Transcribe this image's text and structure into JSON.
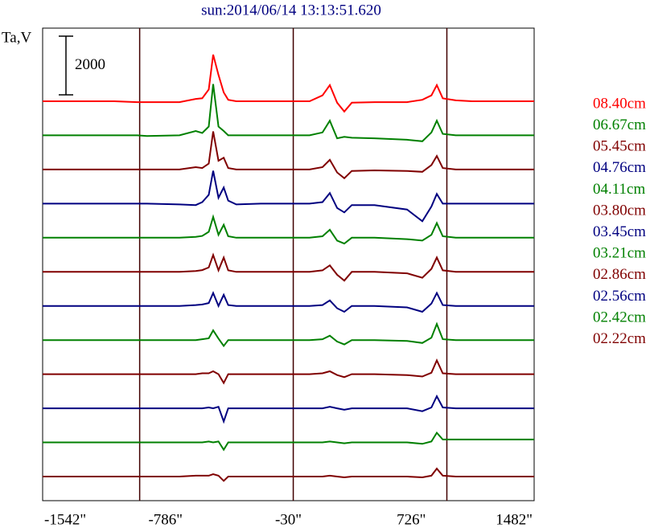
{
  "chart_data": {
    "type": "line",
    "title": "sun:2014/06/14 13:13:51.620",
    "ylabel": "Ta,V",
    "scale_bar": 2000,
    "xlim": [
      -1542,
      1482
    ],
    "xticks": [
      {
        "value": -1542,
        "label": "-1542\""
      },
      {
        "value": -786,
        "label": "-786\""
      },
      {
        "value": -30,
        "label": "-30\""
      },
      {
        "value": 726,
        "label": "726\""
      },
      {
        "value": 1482,
        "label": "1482\""
      }
    ],
    "markers": [
      -945,
      0,
      945
    ],
    "x": [
      -1542,
      -1100,
      -960,
      -900,
      -700,
      -600,
      -560,
      -520,
      -493,
      -460,
      -428,
      -400,
      -350,
      -200,
      100,
      180,
      225,
      270,
      314,
      360,
      500,
      700,
      794,
      850,
      883,
      920,
      1000,
      1100,
      1482
    ],
    "series": [
      {
        "name": "08.40cm",
        "color": "#ff0000",
        "values": [
          0,
          0,
          -30,
          -30,
          -30,
          80,
          100,
          400,
          1590,
          900,
          300,
          50,
          0,
          0,
          0,
          200,
          550,
          -50,
          -350,
          -50,
          -30,
          -30,
          50,
          200,
          550,
          100,
          30,
          0,
          0
        ]
      },
      {
        "name": "06.67cm",
        "color": "#008000",
        "values": [
          0,
          0,
          0,
          -20,
          0,
          150,
          80,
          300,
          1750,
          300,
          150,
          0,
          0,
          0,
          0,
          100,
          500,
          -100,
          -50,
          -80,
          -100,
          -150,
          -200,
          100,
          500,
          50,
          0,
          0,
          0
        ]
      },
      {
        "name": "05.45cm",
        "color": "#800000",
        "values": [
          0,
          0,
          0,
          0,
          0,
          80,
          50,
          200,
          1300,
          300,
          400,
          50,
          0,
          0,
          0,
          80,
          330,
          -100,
          -300,
          -50,
          -30,
          -50,
          -80,
          150,
          460,
          50,
          0,
          0,
          0
        ]
      },
      {
        "name": "04.76cm",
        "color": "#000080",
        "values": [
          0,
          0,
          0,
          0,
          -30,
          -50,
          50,
          300,
          1120,
          200,
          550,
          100,
          -30,
          0,
          0,
          50,
          360,
          -150,
          -300,
          -50,
          -50,
          -200,
          -600,
          -100,
          330,
          0,
          0,
          0,
          0
        ]
      },
      {
        "name": "04.11cm",
        "color": "#008000",
        "values": [
          0,
          0,
          0,
          0,
          0,
          30,
          60,
          200,
          710,
          100,
          440,
          50,
          0,
          0,
          0,
          50,
          270,
          -100,
          -200,
          0,
          0,
          -50,
          -100,
          100,
          500,
          50,
          0,
          0,
          0
        ]
      },
      {
        "name": "03.80cm",
        "color": "#800000",
        "values": [
          0,
          0,
          0,
          0,
          0,
          30,
          60,
          150,
          575,
          50,
          490,
          50,
          0,
          0,
          0,
          50,
          220,
          -100,
          -300,
          0,
          0,
          -50,
          -200,
          100,
          490,
          50,
          0,
          0,
          0
        ]
      },
      {
        "name": "03.45cm",
        "color": "#000080",
        "values": [
          0,
          0,
          0,
          0,
          0,
          30,
          50,
          100,
          440,
          0,
          380,
          30,
          0,
          0,
          0,
          30,
          190,
          -80,
          -200,
          0,
          0,
          -50,
          -200,
          80,
          440,
          30,
          0,
          0,
          0
        ]
      },
      {
        "name": "03.21cm",
        "color": "#008000",
        "values": [
          0,
          0,
          0,
          0,
          0,
          0,
          30,
          60,
          330,
          50,
          -200,
          0,
          0,
          0,
          0,
          30,
          150,
          -50,
          -150,
          0,
          0,
          -30,
          -100,
          80,
          550,
          30,
          0,
          0,
          0
        ]
      },
      {
        "name": "02.86cm",
        "color": "#800000",
        "values": [
          0,
          0,
          0,
          0,
          0,
          0,
          30,
          30,
          100,
          0,
          -300,
          0,
          0,
          0,
          0,
          30,
          100,
          -30,
          -100,
          0,
          0,
          -30,
          -80,
          50,
          470,
          30,
          0,
          0,
          0
        ]
      },
      {
        "name": "02.56cm",
        "color": "#000080",
        "values": [
          0,
          0,
          0,
          0,
          0,
          0,
          0,
          30,
          0,
          50,
          -450,
          0,
          0,
          0,
          0,
          0,
          50,
          0,
          -50,
          0,
          0,
          0,
          -100,
          30,
          410,
          30,
          0,
          0,
          0
        ]
      },
      {
        "name": "02.42cm",
        "color": "#008000",
        "values": [
          0,
          0,
          0,
          0,
          0,
          0,
          0,
          30,
          0,
          30,
          -250,
          0,
          0,
          0,
          0,
          0,
          30,
          0,
          -30,
          0,
          0,
          0,
          -50,
          30,
          330,
          100,
          100,
          100,
          100
        ]
      },
      {
        "name": "02.22cm",
        "color": "#800000",
        "values": [
          0,
          0,
          0,
          0,
          0,
          30,
          30,
          30,
          80,
          30,
          -150,
          0,
          0,
          0,
          0,
          0,
          30,
          0,
          -30,
          0,
          0,
          0,
          -30,
          30,
          270,
          30,
          0,
          0,
          0
        ]
      }
    ]
  }
}
